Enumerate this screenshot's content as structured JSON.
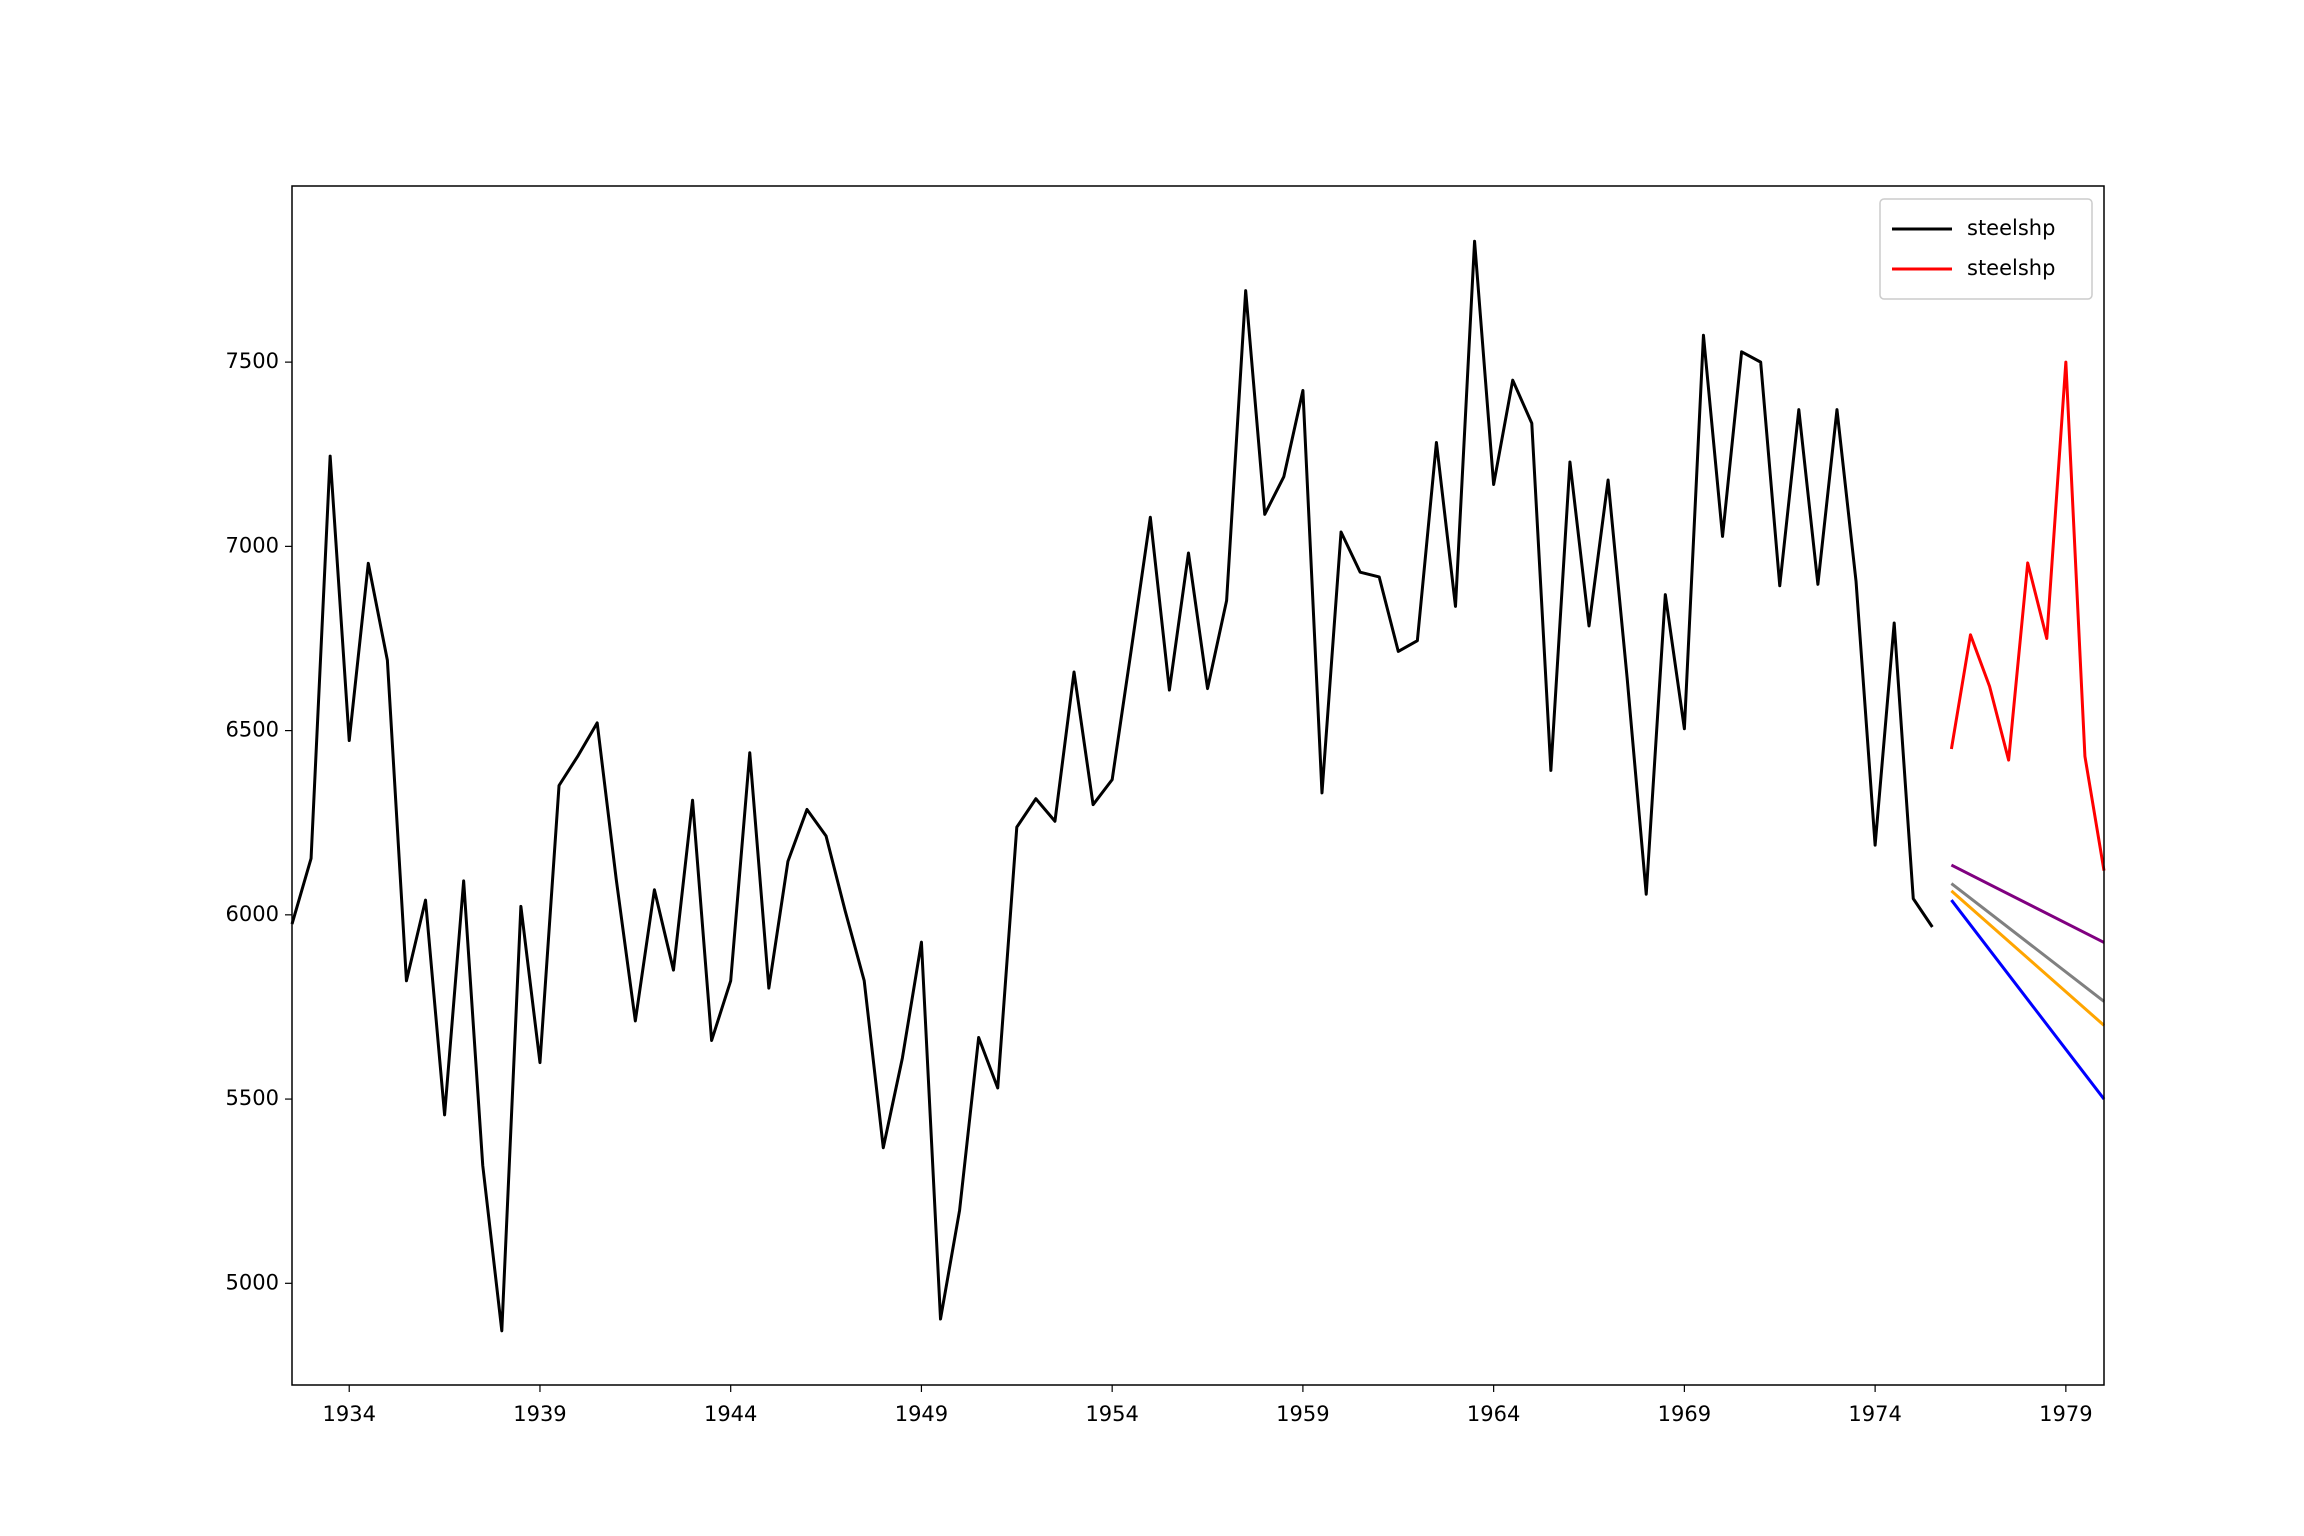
{
  "chart_data": {
    "type": "line",
    "xlim": [
      1932.5,
      1980
    ],
    "xticks": [
      1934,
      1939,
      1944,
      1949,
      1954,
      1959,
      1964,
      1969,
      1974,
      1979
    ],
    "ylim": [
      4724,
      7978
    ],
    "yticks": [
      5000,
      5500,
      6000,
      6500,
      7000,
      7500
    ],
    "legend": "upper right",
    "series": [
      {
        "name": "steelshp",
        "color": "#000000",
        "x": [
          1932.5,
          1933,
          1933.5,
          1934,
          1934.5,
          1935,
          1935.5,
          1936,
          1936.5,
          1937,
          1937.5,
          1938,
          1938.5,
          1939,
          1939.5,
          1940,
          1940.5,
          1941,
          1941.5,
          1942,
          1942.5,
          1943,
          1943.5,
          1944,
          1944.5,
          1945,
          1945.5,
          1946,
          1946.5,
          1947,
          1947.5,
          1948,
          1948.5,
          1949,
          1949.5,
          1950,
          1950.5,
          1951,
          1951.5,
          1952,
          1952.5,
          1953,
          1953.5,
          1954,
          1954.5,
          1955,
          1955.5,
          1956,
          1956.5,
          1957,
          1957.5,
          1958,
          1958.5,
          1959,
          1959.5,
          1960,
          1960.5,
          1961,
          1961.5,
          1962,
          1962.5,
          1963,
          1963.5,
          1964,
          1964.5,
          1965,
          1965.5,
          1966,
          1966.5,
          1967,
          1967.5,
          1968,
          1968.5,
          1969,
          1969.5,
          1970,
          1970.5,
          1971,
          1971.5,
          1972,
          1972.5,
          1973,
          1973.5,
          1974,
          1974.5,
          1975,
          1975.5
        ],
        "values": [
          5975,
          6153,
          7245,
          6473,
          6954,
          6691,
          5821,
          6040,
          5457,
          6092,
          5320,
          4871,
          6023,
          5599,
          6351,
          6432,
          6521,
          6096,
          5712,
          6068,
          5850,
          6311,
          5659,
          5821,
          6440,
          5801,
          6145,
          6286,
          6214,
          6011,
          5821,
          5368,
          5611,
          5926,
          4903,
          5198,
          5667,
          5530,
          6238,
          6315,
          6254,
          6659,
          6299,
          6367,
          6719,
          7079,
          6610,
          6982,
          6614,
          6853,
          7694,
          7087,
          7189,
          7423,
          6331,
          7039,
          6930,
          6917,
          6715,
          6744,
          7282,
          6837,
          7828,
          7168,
          7451,
          7334,
          6392,
          7229,
          6784,
          7180,
          6642,
          6056,
          6869,
          6505,
          7573,
          7027,
          7528,
          7500,
          6893,
          7371,
          6897,
          7371,
          6905,
          6189,
          6792,
          6044,
          5967
        ]
      },
      {
        "name": "steelshp",
        "color": "#ff0000",
        "x": [
          1976,
          1976.5,
          1977,
          1977.5,
          1978,
          1978.5,
          1979,
          1979.5,
          1980
        ],
        "values": [
          6450,
          6760,
          6620,
          6420,
          6955,
          6750,
          7500,
          6430,
          6120
        ]
      },
      {
        "color": "#800080",
        "x": [
          1976,
          1980
        ],
        "values": [
          6135,
          5925
        ]
      },
      {
        "color": "#808080",
        "x": [
          1976,
          1980
        ],
        "values": [
          6085,
          5765
        ]
      },
      {
        "color": "#ffa500",
        "x": [
          1976,
          1980
        ],
        "values": [
          6065,
          5700
        ]
      },
      {
        "color": "#0000ff",
        "x": [
          1976,
          1980
        ],
        "values": [
          6040,
          5500
        ]
      }
    ]
  }
}
